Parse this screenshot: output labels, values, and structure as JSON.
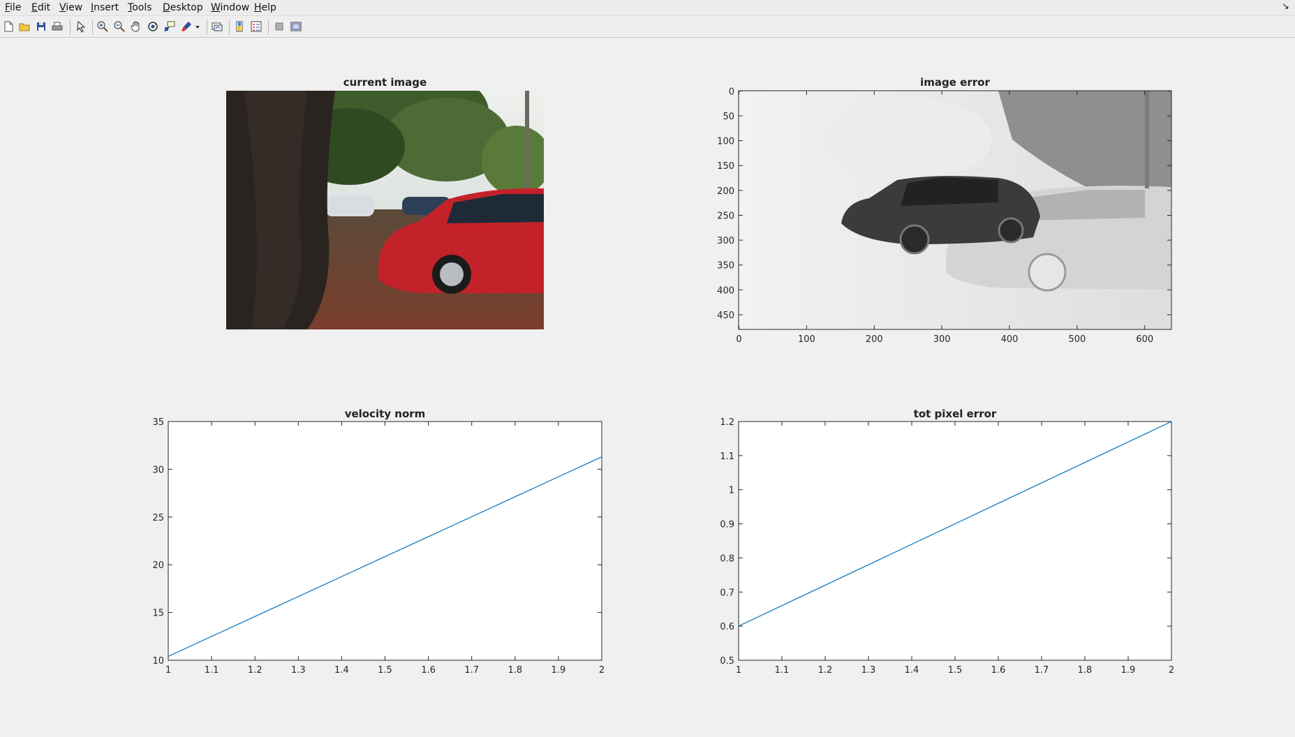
{
  "menu": {
    "items": [
      {
        "label": "File",
        "accel": "F"
      },
      {
        "label": "Edit",
        "accel": "E"
      },
      {
        "label": "View",
        "accel": "V"
      },
      {
        "label": "Insert",
        "accel": "I"
      },
      {
        "label": "Tools",
        "accel": "T"
      },
      {
        "label": "Desktop",
        "accel": "D"
      },
      {
        "label": "Window",
        "accel": "W"
      },
      {
        "label": "Help",
        "accel": "H"
      }
    ],
    "minimize_glyph": "↘"
  },
  "toolbar": {
    "icons": [
      "new-figure-icon",
      "open-file-icon",
      "save-icon",
      "print-icon",
      "pointer-icon",
      "zoom-in-icon",
      "zoom-out-icon",
      "pan-hand-icon",
      "rotate-3d-icon",
      "data-cursor-icon",
      "brush-icon",
      "brush-dropdown-icon",
      "link-plot-icon",
      "insert-colorbar-icon",
      "insert-legend-icon",
      "hide-plot-tools-icon",
      "show-plot-tools-icon"
    ]
  },
  "subplots": {
    "current_image": {
      "title": "current image"
    },
    "image_error": {
      "title": "image error",
      "xticks": [
        "0",
        "100",
        "200",
        "300",
        "400",
        "500",
        "600"
      ],
      "yticks": [
        "0",
        "50",
        "100",
        "150",
        "200",
        "250",
        "300",
        "350",
        "400",
        "450"
      ]
    },
    "velocity_norm": {
      "title": "velocity norm"
    },
    "tot_pixel_error": {
      "title": "tot pixel error"
    }
  },
  "chart_data": [
    {
      "type": "line",
      "title": "velocity norm",
      "xlabel": "",
      "ylabel": "",
      "xlim": [
        1,
        2
      ],
      "ylim": [
        10,
        35
      ],
      "xticks": [
        "1",
        "1.1",
        "1.2",
        "1.3",
        "1.4",
        "1.5",
        "1.6",
        "1.7",
        "1.8",
        "1.9",
        "2"
      ],
      "yticks": [
        "10",
        "15",
        "20",
        "25",
        "30",
        "35"
      ],
      "series": [
        {
          "x": [
            1,
            2
          ],
          "y": [
            10.4,
            31.3
          ],
          "color": "#0072bd"
        }
      ],
      "grid": false
    },
    {
      "type": "line",
      "title": "tot pixel error",
      "xlabel": "",
      "ylabel": "",
      "xlim": [
        1,
        2
      ],
      "ylim": [
        0.5,
        1.2
      ],
      "xticks": [
        "1",
        "1.1",
        "1.2",
        "1.3",
        "1.4",
        "1.5",
        "1.6",
        "1.7",
        "1.8",
        "1.9",
        "2"
      ],
      "yticks": [
        "0.5",
        "0.6",
        "0.7",
        "0.8",
        "0.9",
        "1",
        "1.1",
        "1.2"
      ],
      "series": [
        {
          "x": [
            1,
            2
          ],
          "y": [
            0.6,
            1.2
          ],
          "color": "#0072bd"
        }
      ],
      "grid": false
    }
  ]
}
